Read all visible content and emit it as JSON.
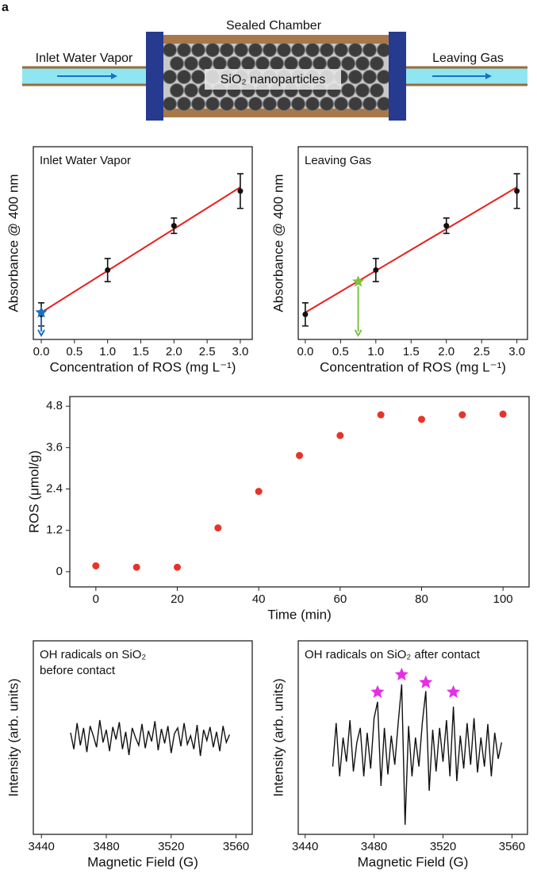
{
  "diagram": {
    "label": "a",
    "chamber": "Sealed Chamber",
    "inlet": "Inlet Water Vapor",
    "outlet": "Leaving Gas",
    "particles": "SiO₂ nanoparticles"
  },
  "chart_data": [
    {
      "type": "scatter",
      "annotation": [
        "Inlet Water Vapor"
      ],
      "xlabel": "Concentration of ROS (mg L⁻¹)",
      "ylabel": "Absorbance @ 400 nm",
      "x": [
        0,
        1,
        2,
        3
      ],
      "values": [
        0.13,
        0.36,
        0.59,
        0.77
      ],
      "errors": [
        0.06,
        0.06,
        0.04,
        0.09
      ],
      "color": "#111111",
      "fit_x": [
        0,
        3
      ],
      "fit_values": [
        0.14,
        0.79
      ],
      "fit_color": "#e8201e",
      "marker_x": 0,
      "marker_value": 0.14,
      "marker_color": "#1a6fc4",
      "xlim": [
        -0.12,
        3.18
      ],
      "ylim": [
        0,
        1
      ],
      "xticks": [
        {
          "value": 0,
          "label": "0.0"
        },
        0.5,
        {
          "value": 1,
          "label": "1.0"
        },
        1.5,
        {
          "value": 2,
          "label": "2.0"
        },
        2.5,
        {
          "value": 3,
          "label": "3.0"
        }
      ]
    },
    {
      "type": "scatter",
      "annotation": [
        "Leaving Gas"
      ],
      "xlabel": "Concentration of ROS (mg L⁻¹)",
      "ylabel": "Absorbance @ 400 nm",
      "x": [
        0,
        1,
        2,
        3
      ],
      "values": [
        0.13,
        0.36,
        0.59,
        0.77
      ],
      "errors": [
        0.06,
        0.06,
        0.04,
        0.09
      ],
      "color": "#111111",
      "fit_x": [
        0,
        3
      ],
      "fit_values": [
        0.14,
        0.79
      ],
      "fit_color": "#e8201e",
      "marker_x": 0.75,
      "marker_value": 0.3,
      "marker_color": "#7dc242",
      "xlim": [
        -0.1,
        3.15
      ],
      "ylim": [
        0,
        1
      ],
      "xticks": [
        {
          "value": 0,
          "label": "0.0"
        },
        0.5,
        {
          "value": 1,
          "label": "1.0"
        },
        1.5,
        {
          "value": 2,
          "label": "2.0"
        },
        2.5,
        {
          "value": 3,
          "label": "3.0"
        }
      ]
    },
    {
      "type": "scatter",
      "xlabel": "Time (min)",
      "ylabel": "ROS (μmol/g)",
      "x": [
        0,
        10,
        20,
        30,
        40,
        50,
        60,
        70,
        80,
        90,
        100
      ],
      "values": [
        0.17,
        0.13,
        0.13,
        1.27,
        2.33,
        3.37,
        3.95,
        4.55,
        4.42,
        4.55,
        4.57
      ],
      "color": "#e8332b",
      "xlim": [
        -6.4,
        106.4
      ],
      "ylim": [
        -0.44,
        5.08
      ],
      "xticks": [
        0,
        20,
        40,
        60,
        80,
        100
      ],
      "yticks": [
        0,
        1.2,
        2.4,
        3.6,
        4.8
      ]
    },
    {
      "type": "line",
      "annotation": [
        "OH radicals on SiO₂",
        "before contact"
      ],
      "xlabel": "Magnetic Field (G)",
      "ylabel": "Intensity (arb. units)",
      "x": [
        3458,
        3460,
        3462,
        3464,
        3466,
        3468,
        3470,
        3472,
        3474,
        3476,
        3478,
        3480,
        3482,
        3484,
        3486,
        3488,
        3490,
        3492,
        3494,
        3496,
        3498,
        3500,
        3502,
        3504,
        3506,
        3508,
        3510,
        3512,
        3514,
        3516,
        3518,
        3520,
        3522,
        3524,
        3526,
        3528,
        3530,
        3532,
        3534,
        3536,
        3538,
        3540,
        3542,
        3544,
        3546,
        3548,
        3550,
        3552,
        3554,
        3556
      ],
      "values": [
        0.05,
        -0.12,
        0.15,
        -0.08,
        0.1,
        -0.15,
        0.12,
        0.02,
        -0.1,
        0.18,
        -0.05,
        0.08,
        -0.14,
        0.11,
        -0.02,
        0.16,
        -0.12,
        0.06,
        -0.18,
        0.1,
        0.0,
        -0.08,
        0.14,
        -0.11,
        0.07,
        -0.04,
        0.17,
        -0.13,
        0.09,
        -0.06,
        0.12,
        -0.16,
        0.04,
        0.1,
        -0.09,
        0.15,
        -0.07,
        0.02,
        -0.12,
        0.13,
        -0.19,
        0.08,
        -0.03,
        0.11,
        -0.1,
        0.06,
        -0.14,
        0.12,
        -0.05,
        0.03
      ],
      "color": "#111111",
      "xlim": [
        3435,
        3570
      ],
      "ylim": [
        -1,
        1
      ],
      "xticks": [
        3440,
        3480,
        3520,
        3560
      ]
    },
    {
      "type": "line",
      "annotation": [
        "OH radicals on SiO₂ after contact"
      ],
      "xlabel": "Magnetic Field (G)",
      "ylabel": "Intensity (arb. units)",
      "x": [
        3456,
        3458,
        3460,
        3462,
        3464,
        3466,
        3468,
        3470,
        3472,
        3474,
        3476,
        3478,
        3480,
        3482,
        3484,
        3486,
        3488,
        3490,
        3492,
        3494,
        3496,
        3498,
        3500,
        3502,
        3504,
        3506,
        3508,
        3510,
        3512,
        3514,
        3516,
        3518,
        3520,
        3522,
        3524,
        3526,
        3528,
        3530,
        3532,
        3534,
        3536,
        3538,
        3540,
        3542,
        3544,
        3546,
        3548,
        3550,
        3552,
        3554
      ],
      "values": [
        -0.2,
        0.25,
        -0.3,
        0.1,
        -0.15,
        0.28,
        -0.25,
        0.05,
        0.2,
        -0.3,
        0.15,
        -0.22,
        0.3,
        0.47,
        -0.4,
        0.2,
        -0.28,
        0.12,
        -0.18,
        0.25,
        0.65,
        -0.8,
        0.22,
        -0.3,
        0.1,
        -0.2,
        0.26,
        0.58,
        -0.45,
        0.18,
        -0.25,
        0.2,
        -0.15,
        0.28,
        -0.3,
        0.42,
        -0.35,
        0.12,
        -0.22,
        0.25,
        -0.18,
        0.3,
        -0.26,
        0.1,
        -0.2,
        0.24,
        -0.3,
        0.15,
        -0.12,
        0.05
      ],
      "color": "#111111",
      "xlim": [
        3436,
        3569
      ],
      "ylim": [
        -0.9,
        1.1
      ],
      "xticks": [
        3440,
        3480,
        3520,
        3560
      ],
      "markers": {
        "x": [
          3482,
          3496,
          3510,
          3526
        ],
        "values": [
          0.57,
          0.75,
          0.67,
          0.57
        ],
        "color": "#e62ee6"
      }
    }
  ]
}
